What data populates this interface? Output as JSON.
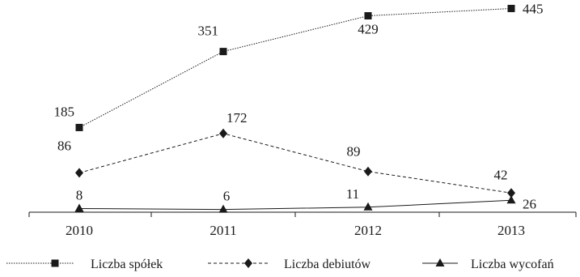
{
  "chart_data": {
    "type": "line",
    "categories": [
      "2010",
      "2011",
      "2012",
      "2013"
    ],
    "ylim": [
      0,
      460
    ],
    "grid": false,
    "legend_position": "bottom",
    "series": [
      {
        "name": "Liczba spółek",
        "values": [
          185,
          351,
          429,
          445
        ],
        "marker": "square",
        "line_style": "dotted",
        "color": "#1a1a1a"
      },
      {
        "name": "Liczba debiutów",
        "values": [
          86,
          172,
          89,
          42
        ],
        "marker": "diamond",
        "line_style": "dashed",
        "color": "#1a1a1a"
      },
      {
        "name": "Liczba wycofań",
        "values": [
          8,
          6,
          11,
          26
        ],
        "marker": "triangle",
        "line_style": "solid",
        "color": "#1a1a1a"
      }
    ]
  }
}
